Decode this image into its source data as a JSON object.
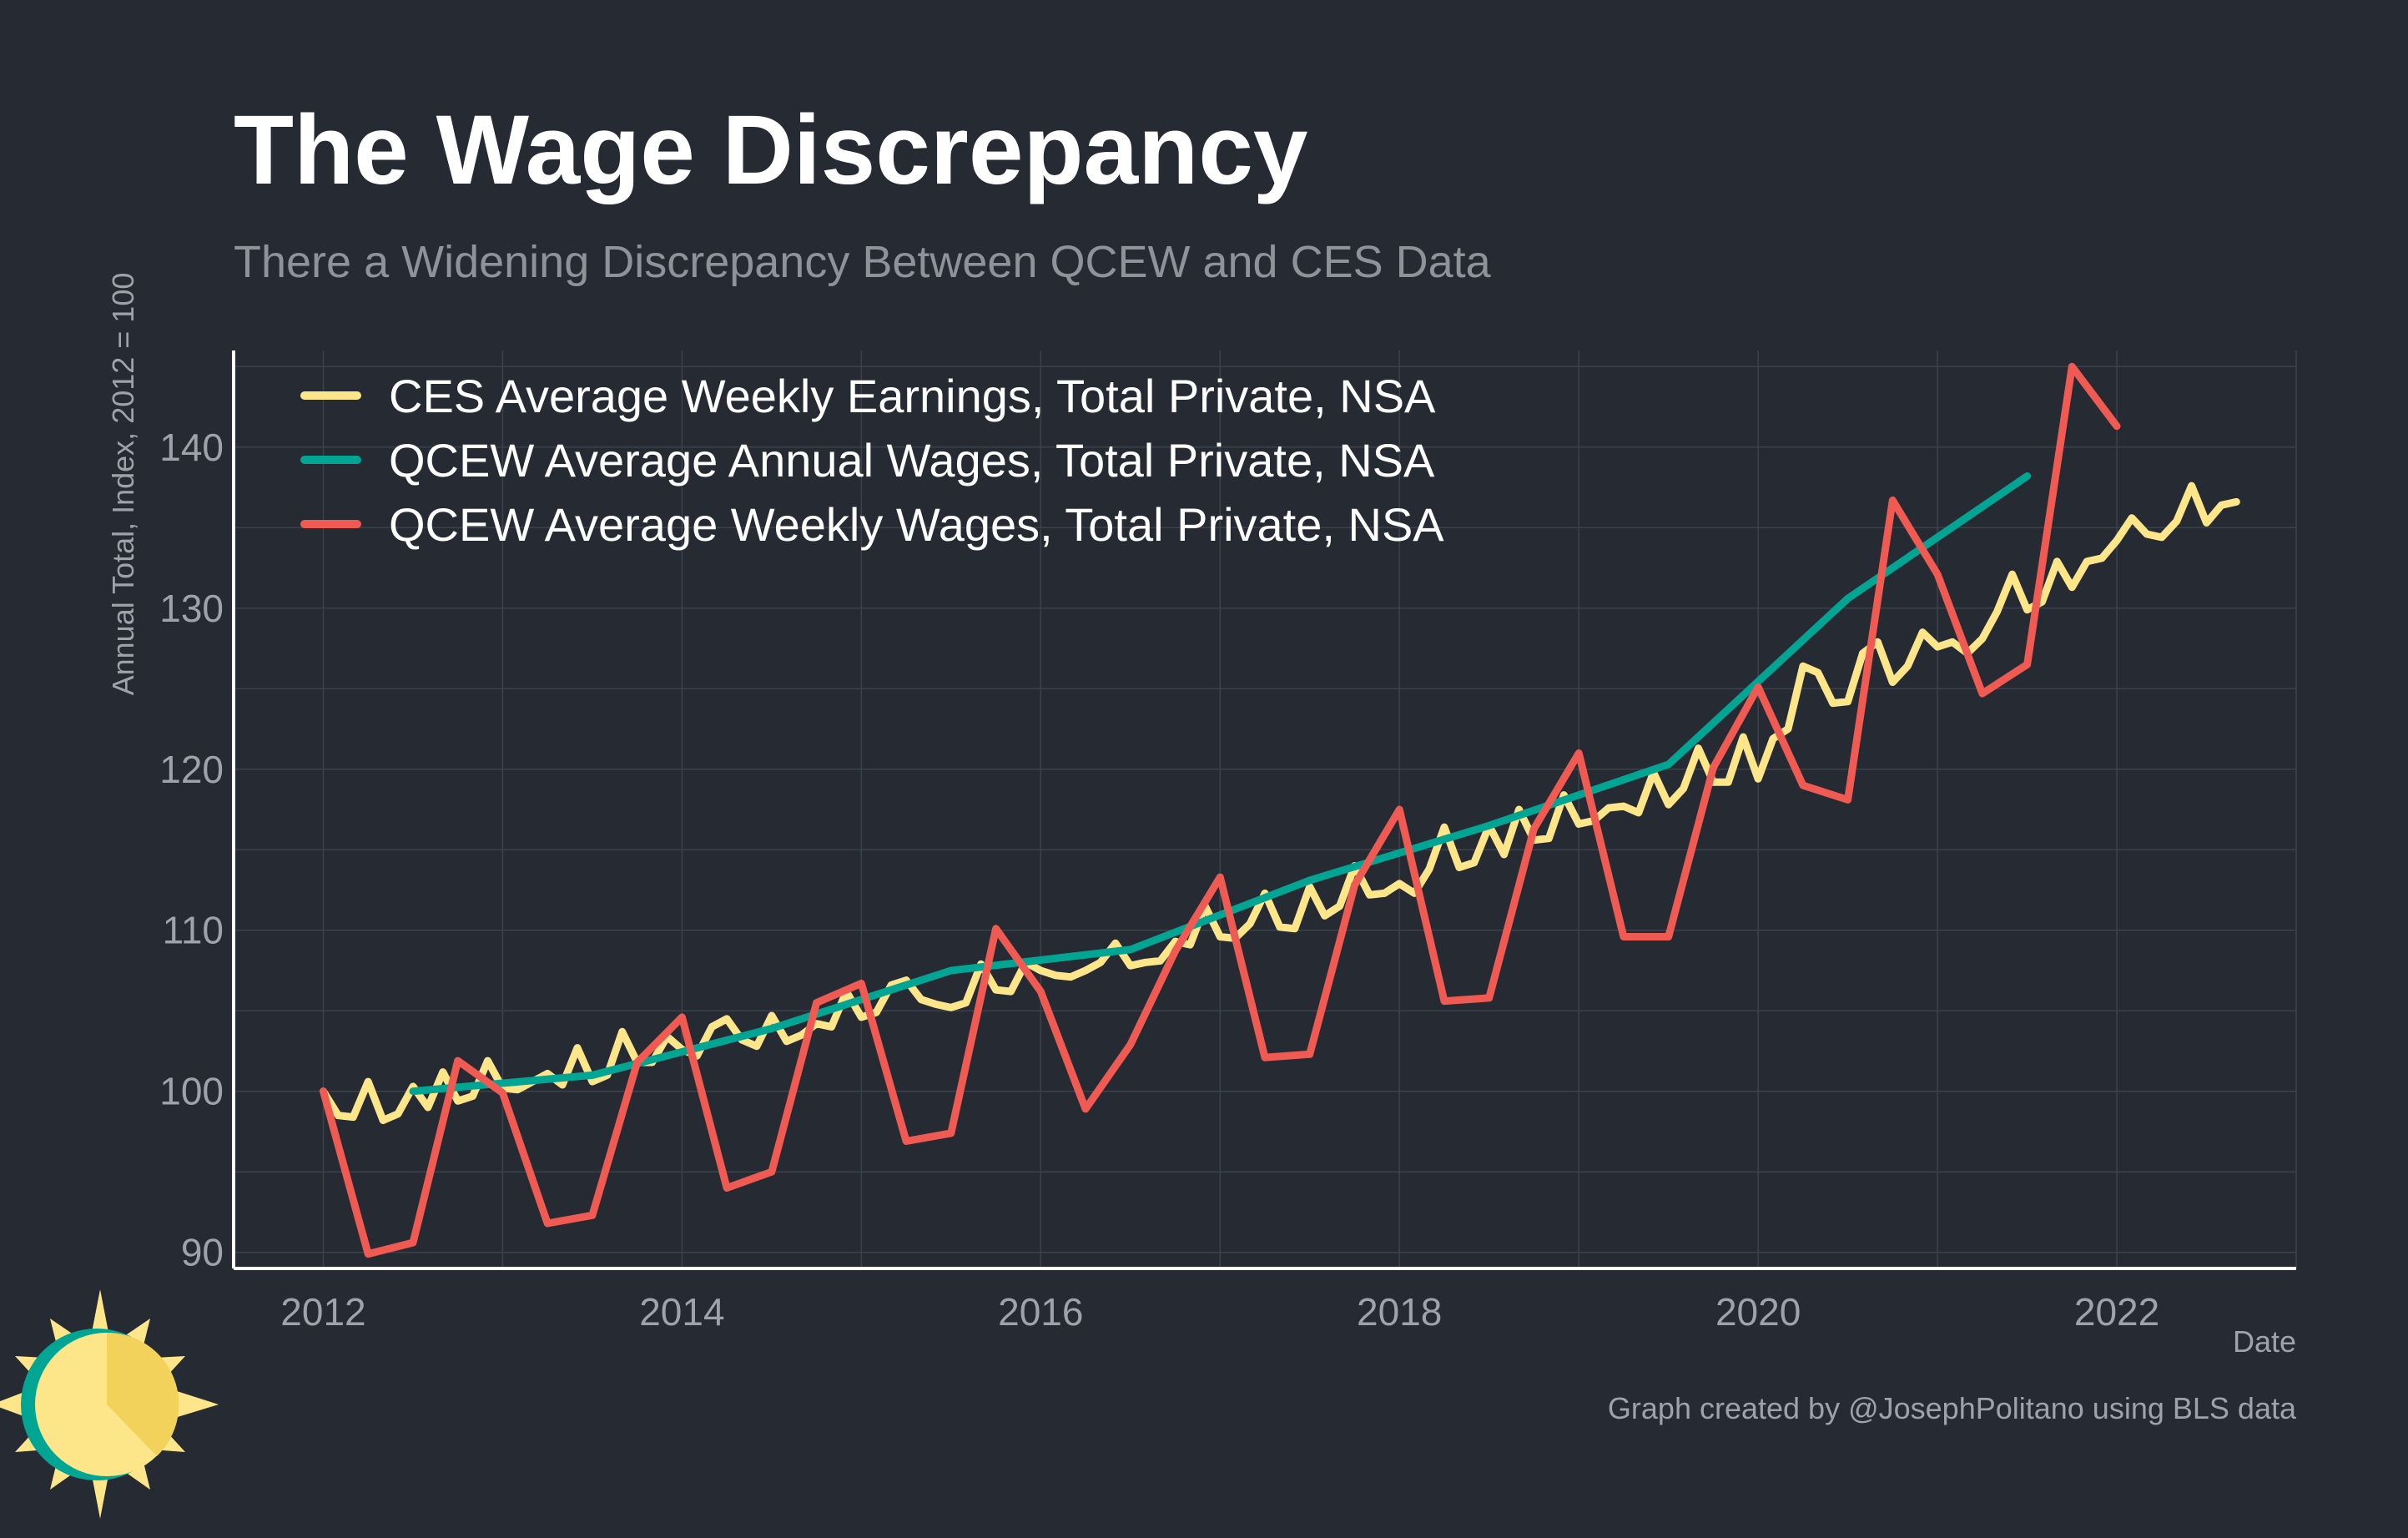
{
  "colors": {
    "background": "#252a33",
    "grid": "#3c424c",
    "axis": "#ffffff"
  },
  "chart_data": {
    "type": "line",
    "title": "The Wage Discrepancy",
    "subtitle": "There a Widening Discrepancy Between QCEW and CES Data",
    "xlabel": "Date",
    "ylabel": "Annual Total, Index, 2012 = 100",
    "xlim": [
      2011.5,
      2023.0
    ],
    "ylim": [
      89,
      146
    ],
    "xticks": [
      2012,
      2014,
      2016,
      2018,
      2020,
      2022
    ],
    "yticks": [
      90,
      100,
      110,
      120,
      130,
      140
    ],
    "grid": true,
    "legend_position": "top-left",
    "caption": "Graph created by @JosephPolitano using BLS data",
    "series": [
      {
        "name": "CES Average Weekly Earnings, Total Private, NSA",
        "color": "#fde68a",
        "points": [
          [
            "2012-01",
            100.0
          ],
          [
            "2012-02",
            98.5
          ],
          [
            "2012-03",
            98.4
          ],
          [
            "2012-04",
            100.6
          ],
          [
            "2012-05",
            98.2
          ],
          [
            "2012-06",
            98.6
          ],
          [
            "2012-07",
            100.3
          ],
          [
            "2012-08",
            99.0
          ],
          [
            "2012-09",
            101.2
          ],
          [
            "2012-10",
            99.4
          ],
          [
            "2012-11",
            99.7
          ],
          [
            "2012-12",
            101.9
          ],
          [
            "2013-01",
            100.2
          ],
          [
            "2013-02",
            100.1
          ],
          [
            "2013-03",
            100.6
          ],
          [
            "2013-04",
            101.1
          ],
          [
            "2013-05",
            100.4
          ],
          [
            "2013-06",
            102.7
          ],
          [
            "2013-07",
            100.6
          ],
          [
            "2013-08",
            101.0
          ],
          [
            "2013-09",
            103.7
          ],
          [
            "2013-10",
            101.8
          ],
          [
            "2013-11",
            101.8
          ],
          [
            "2013-12",
            103.4
          ],
          [
            "2014-01",
            102.6
          ],
          [
            "2014-02",
            102.2
          ],
          [
            "2014-03",
            104.0
          ],
          [
            "2014-04",
            104.5
          ],
          [
            "2014-05",
            103.2
          ],
          [
            "2014-06",
            102.8
          ],
          [
            "2014-07",
            104.7
          ],
          [
            "2014-08",
            103.1
          ],
          [
            "2014-09",
            103.5
          ],
          [
            "2014-10",
            104.2
          ],
          [
            "2014-11",
            104.0
          ],
          [
            "2014-12",
            106.2
          ],
          [
            "2015-01",
            104.6
          ],
          [
            "2015-02",
            104.9
          ],
          [
            "2015-03",
            106.6
          ],
          [
            "2015-04",
            106.9
          ],
          [
            "2015-05",
            105.7
          ],
          [
            "2015-06",
            105.4
          ],
          [
            "2015-07",
            105.2
          ],
          [
            "2015-08",
            105.5
          ],
          [
            "2015-09",
            107.9
          ],
          [
            "2015-10",
            106.3
          ],
          [
            "2015-11",
            106.2
          ],
          [
            "2015-12",
            108.0
          ],
          [
            "2016-01",
            107.5
          ],
          [
            "2016-02",
            107.2
          ],
          [
            "2016-03",
            107.1
          ],
          [
            "2016-04",
            107.5
          ],
          [
            "2016-05",
            108.0
          ],
          [
            "2016-06",
            109.2
          ],
          [
            "2016-07",
            107.8
          ],
          [
            "2016-08",
            108.0
          ],
          [
            "2016-09",
            108.1
          ],
          [
            "2016-10",
            109.3
          ],
          [
            "2016-11",
            109.1
          ],
          [
            "2016-12",
            111.5
          ],
          [
            "2017-01",
            109.6
          ],
          [
            "2017-02",
            109.5
          ],
          [
            "2017-03",
            110.4
          ],
          [
            "2017-04",
            112.3
          ],
          [
            "2017-05",
            110.2
          ],
          [
            "2017-06",
            110.1
          ],
          [
            "2017-07",
            112.7
          ],
          [
            "2017-08",
            110.9
          ],
          [
            "2017-09",
            111.5
          ],
          [
            "2017-10",
            114.0
          ],
          [
            "2017-11",
            112.2
          ],
          [
            "2017-12",
            112.3
          ],
          [
            "2018-01",
            112.9
          ],
          [
            "2018-02",
            112.3
          ],
          [
            "2018-03",
            113.8
          ],
          [
            "2018-04",
            116.4
          ],
          [
            "2018-05",
            113.9
          ],
          [
            "2018-06",
            114.2
          ],
          [
            "2018-07",
            116.5
          ],
          [
            "2018-08",
            114.7
          ],
          [
            "2018-09",
            117.5
          ],
          [
            "2018-10",
            115.6
          ],
          [
            "2018-11",
            115.7
          ],
          [
            "2018-12",
            118.4
          ],
          [
            "2019-01",
            116.6
          ],
          [
            "2019-02",
            116.8
          ],
          [
            "2019-03",
            117.6
          ],
          [
            "2019-04",
            117.7
          ],
          [
            "2019-05",
            117.3
          ],
          [
            "2019-06",
            119.8
          ],
          [
            "2019-07",
            117.8
          ],
          [
            "2019-08",
            118.8
          ],
          [
            "2019-09",
            121.3
          ],
          [
            "2019-10",
            119.2
          ],
          [
            "2019-11",
            119.2
          ],
          [
            "2019-12",
            122.0
          ],
          [
            "2020-01",
            119.4
          ],
          [
            "2020-02",
            121.9
          ],
          [
            "2020-03",
            122.5
          ],
          [
            "2020-04",
            126.4
          ],
          [
            "2020-05",
            126.0
          ],
          [
            "2020-06",
            124.1
          ],
          [
            "2020-07",
            124.2
          ],
          [
            "2020-08",
            127.2
          ],
          [
            "2020-09",
            127.9
          ],
          [
            "2020-10",
            125.4
          ],
          [
            "2020-11",
            126.4
          ],
          [
            "2020-12",
            128.5
          ],
          [
            "2021-01",
            127.6
          ],
          [
            "2021-02",
            127.9
          ],
          [
            "2021-03",
            127.2
          ],
          [
            "2021-04",
            128.1
          ],
          [
            "2021-05",
            129.8
          ],
          [
            "2021-06",
            132.1
          ],
          [
            "2021-07",
            129.9
          ],
          [
            "2021-08",
            130.4
          ],
          [
            "2021-09",
            132.9
          ],
          [
            "2021-10",
            131.3
          ],
          [
            "2021-11",
            132.9
          ],
          [
            "2021-12",
            133.1
          ],
          [
            "2022-01",
            134.2
          ],
          [
            "2022-02",
            135.6
          ],
          [
            "2022-03",
            134.6
          ],
          [
            "2022-04",
            134.4
          ],
          [
            "2022-05",
            135.4
          ],
          [
            "2022-06",
            137.6
          ],
          [
            "2022-07",
            135.3
          ],
          [
            "2022-08",
            136.4
          ],
          [
            "2022-09",
            136.6
          ]
        ]
      },
      {
        "name": "QCEW Average Annual Wages, Total Private, NSA",
        "color": "#00a594",
        "points": [
          [
            "2012-07",
            100.0
          ],
          [
            "2013-07",
            101.0
          ],
          [
            "2014-07",
            103.9
          ],
          [
            "2015-07",
            107.5
          ],
          [
            "2016-07",
            108.8
          ],
          [
            "2017-07",
            113.1
          ],
          [
            "2018-07",
            116.5
          ],
          [
            "2019-07",
            120.3
          ],
          [
            "2020-07",
            130.6
          ],
          [
            "2021-07",
            138.2
          ]
        ]
      },
      {
        "name": "QCEW Average Weekly Wages, Total Private, NSA",
        "color": "#ef5a52",
        "points": [
          [
            "2012-01",
            100.0
          ],
          [
            "2012-04",
            89.9
          ],
          [
            "2012-07",
            90.6
          ],
          [
            "2012-10",
            101.9
          ],
          [
            "2013-01",
            99.9
          ],
          [
            "2013-04",
            91.8
          ],
          [
            "2013-07",
            92.3
          ],
          [
            "2013-10",
            101.8
          ],
          [
            "2014-01",
            104.6
          ],
          [
            "2014-04",
            94.0
          ],
          [
            "2014-07",
            95.0
          ],
          [
            "2014-10",
            105.5
          ],
          [
            "2015-01",
            106.7
          ],
          [
            "2015-04",
            96.9
          ],
          [
            "2015-07",
            97.4
          ],
          [
            "2015-10",
            110.1
          ],
          [
            "2016-01",
            106.2
          ],
          [
            "2016-04",
            98.9
          ],
          [
            "2016-07",
            102.9
          ],
          [
            "2016-10",
            108.7
          ],
          [
            "2017-01",
            113.3
          ],
          [
            "2017-04",
            102.1
          ],
          [
            "2017-07",
            102.3
          ],
          [
            "2017-10",
            112.8
          ],
          [
            "2018-01",
            117.5
          ],
          [
            "2018-04",
            105.6
          ],
          [
            "2018-07",
            105.8
          ],
          [
            "2018-10",
            116.3
          ],
          [
            "2019-01",
            121.0
          ],
          [
            "2019-04",
            109.6
          ],
          [
            "2019-07",
            109.6
          ],
          [
            "2019-10",
            120.1
          ],
          [
            "2020-01",
            125.1
          ],
          [
            "2020-04",
            119.0
          ],
          [
            "2020-07",
            118.1
          ],
          [
            "2020-10",
            136.7
          ],
          [
            "2021-01",
            132.1
          ],
          [
            "2021-04",
            124.7
          ],
          [
            "2021-07",
            126.5
          ],
          [
            "2021-10",
            145.0
          ],
          [
            "2022-01",
            141.3
          ]
        ]
      }
    ]
  }
}
